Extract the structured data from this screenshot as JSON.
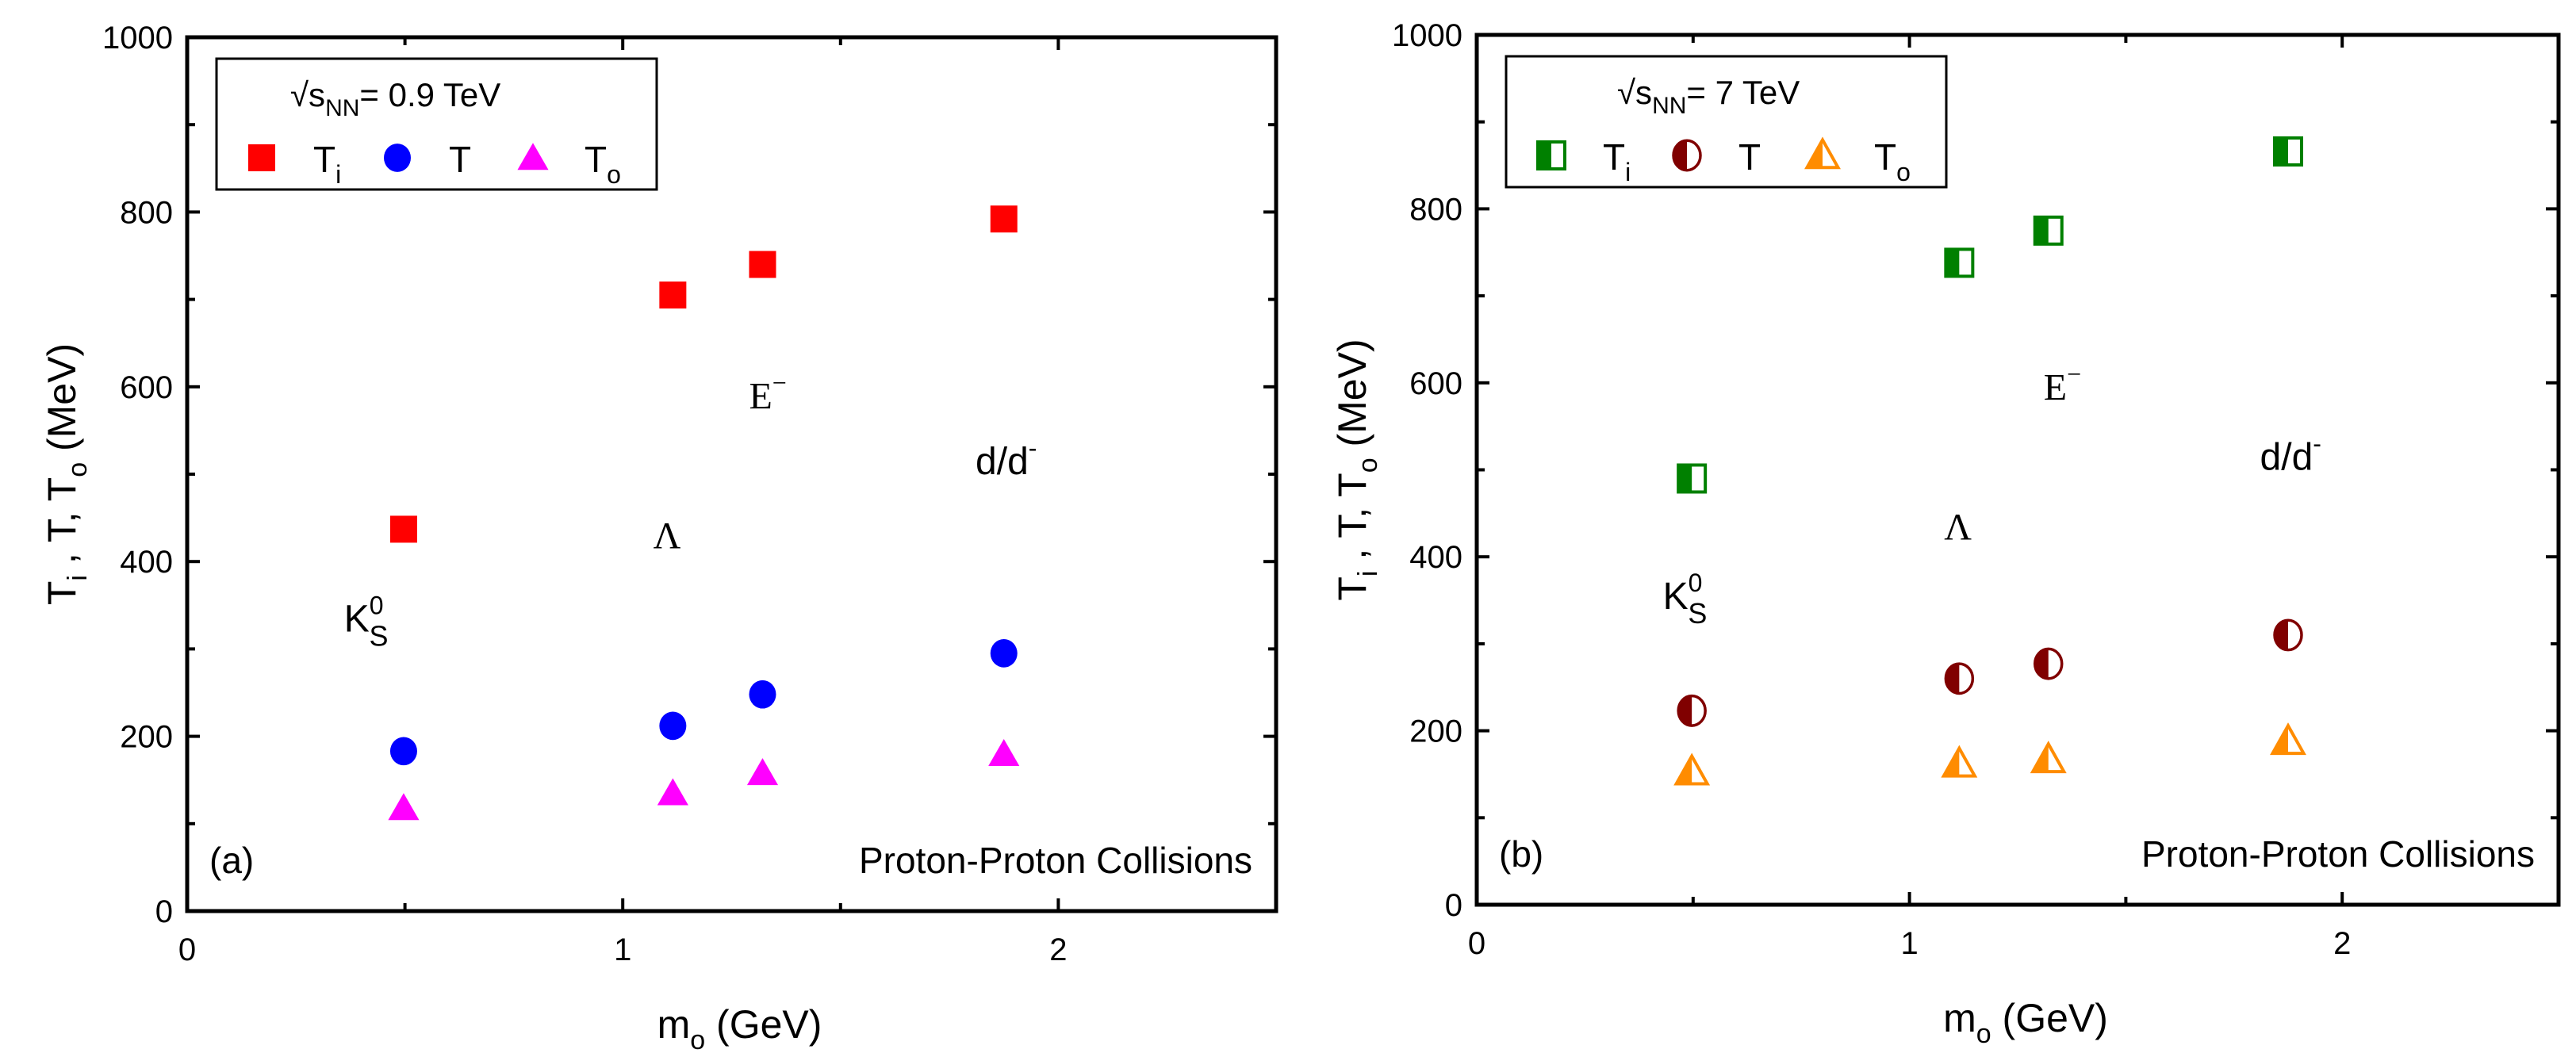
{
  "chart_data": [
    {
      "type": "scatter",
      "panel_label": "(a)",
      "legend_title": {
        "prefix": "√s",
        "sub": "NN",
        "suffix": "= 0.9 TeV"
      },
      "annotation": "Proton-Proton Collisions",
      "xlabel": {
        "main": "m",
        "sub": "o",
        "rest": " (GeV)"
      },
      "ylabel": "T_i , T, T_o (MeV)",
      "xlim": [
        0,
        2.5
      ],
      "ylim": [
        0,
        1000
      ],
      "xticks": [
        "0",
        "1",
        "2"
      ],
      "yticks": [
        "0",
        "200",
        "400",
        "600",
        "800",
        "1000"
      ],
      "x": [
        0.497,
        1.115,
        1.321,
        1.875
      ],
      "series": [
        {
          "name": "Ti",
          "legend": {
            "main": "T",
            "sub": "i"
          },
          "marker": "square",
          "color": "#ff0000",
          "values": [
            437,
            705,
            740,
            792
          ]
        },
        {
          "name": "T",
          "legend": {
            "main": "T",
            "sub": ""
          },
          "marker": "circle",
          "color": "#0000ff",
          "values": [
            183,
            212,
            248,
            295
          ]
        },
        {
          "name": "To",
          "legend": {
            "main": "T",
            "sub": "o"
          },
          "marker": "triangle",
          "color": "#ff00ff",
          "values": [
            118,
            135,
            158,
            180
          ]
        }
      ],
      "particle_labels": [
        {
          "text": "K",
          "sup": "0",
          "sub": "S",
          "x": 0.36,
          "y": 320,
          "serif": false
        },
        {
          "text": "Λ",
          "sup": "",
          "sub": "",
          "x": 1.07,
          "y": 415,
          "serif": true
        },
        {
          "text": "E",
          "sup": "−",
          "sub": "",
          "x": 1.29,
          "y": 575,
          "serif": true
        },
        {
          "text": "d/d",
          "sup": "-",
          "sub": "",
          "x": 1.81,
          "y": 500,
          "serif": false
        }
      ]
    },
    {
      "type": "scatter",
      "panel_label": "(b)",
      "legend_title": {
        "prefix": "√s",
        "sub": "NN",
        "suffix": "= 7 TeV"
      },
      "annotation": "Proton-Proton Collisions",
      "xlabel": {
        "main": "m",
        "sub": "o",
        "rest": " (GeV)"
      },
      "ylabel": "T_i , T, T_o (MeV)",
      "xlim": [
        0,
        2.5
      ],
      "ylim": [
        0,
        1000
      ],
      "xticks": [
        "0",
        "1",
        "2"
      ],
      "yticks": [
        "0",
        "200",
        "400",
        "600",
        "800",
        "1000"
      ],
      "x": [
        0.497,
        1.115,
        1.321,
        1.875
      ],
      "series": [
        {
          "name": "Ti",
          "legend": {
            "main": "T",
            "sub": "i"
          },
          "marker": "half-square",
          "color": "#008000",
          "values": [
            490,
            738,
            775,
            866
          ]
        },
        {
          "name": "T",
          "legend": {
            "main": "T",
            "sub": ""
          },
          "marker": "half-circle",
          "color": "#800000",
          "values": [
            223,
            260,
            277,
            310
          ]
        },
        {
          "name": "To",
          "legend": {
            "main": "T",
            "sub": "o"
          },
          "marker": "half-triangle",
          "color": "#ff8c00",
          "values": [
            153,
            162,
            167,
            188
          ]
        }
      ],
      "particle_labels": [
        {
          "text": "K",
          "sup": "0",
          "sub": "S",
          "x": 0.43,
          "y": 340,
          "serif": false
        },
        {
          "text": "Λ",
          "sup": "",
          "sub": "",
          "x": 1.08,
          "y": 420,
          "serif": true
        },
        {
          "text": "E",
          "sup": "−",
          "sub": "",
          "x": 1.31,
          "y": 580,
          "serif": true
        },
        {
          "text": "d/d",
          "sup": "-",
          "sub": "",
          "x": 1.81,
          "y": 500,
          "serif": false
        }
      ]
    }
  ]
}
